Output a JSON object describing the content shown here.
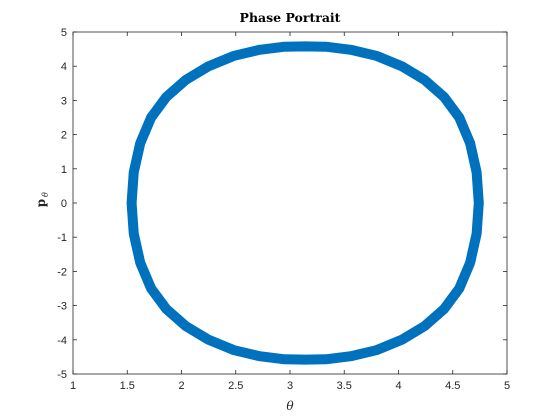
{
  "chart_data": {
    "type": "line",
    "title": "Phase Portrait",
    "xlabel": "θ",
    "ylabel": "p",
    "ylabel_subscript": "θ",
    "xlim": [
      1,
      5
    ],
    "ylim": [
      -5,
      5
    ],
    "xticks": [
      "1",
      "1.5",
      "2",
      "2.5",
      "3",
      "3.5",
      "4",
      "4.5",
      "5"
    ],
    "yticks": [
      "5",
      "4",
      "3",
      "2",
      "1",
      "0",
      "-1",
      "-2",
      "-3",
      "-4",
      "-5"
    ],
    "grid": false,
    "series": [
      {
        "color": "#0072BD",
        "x": [
          1.54,
          1.56,
          1.62,
          1.72,
          1.86,
          2.04,
          2.25,
          2.48,
          2.72,
          2.95,
          3.14,
          3.33,
          3.56,
          3.8,
          4.03,
          4.24,
          4.42,
          4.56,
          4.66,
          4.72,
          4.74,
          4.72,
          4.66,
          4.56,
          4.42,
          4.24,
          4.03,
          3.8,
          3.56,
          3.33,
          3.14,
          2.95,
          2.72,
          2.48,
          2.25,
          2.04,
          1.86,
          1.72,
          1.62,
          1.56,
          1.54
        ],
        "y": [
          0.0,
          0.9,
          1.75,
          2.5,
          3.1,
          3.6,
          4.0,
          4.3,
          4.48,
          4.57,
          4.58,
          4.57,
          4.48,
          4.3,
          4.0,
          3.6,
          3.1,
          2.5,
          1.75,
          0.9,
          0.0,
          -0.9,
          -1.75,
          -2.5,
          -3.1,
          -3.6,
          -4.0,
          -4.3,
          -4.48,
          -4.57,
          -4.58,
          -4.57,
          -4.48,
          -4.3,
          -4.0,
          -3.6,
          -3.1,
          -2.5,
          -1.75,
          -0.9,
          0.0
        ]
      }
    ]
  }
}
